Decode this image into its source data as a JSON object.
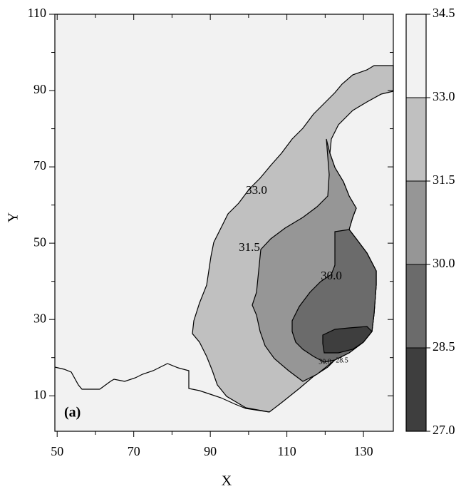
{
  "chart_data": {
    "type": "contour",
    "panel_label": "(a)",
    "xlabel": "X",
    "ylabel": "Y",
    "xlim": [
      49.4,
      137.8
    ],
    "xticks": [
      50,
      70,
      90,
      110,
      130
    ],
    "ylim": [
      0.7,
      110
    ],
    "yticks": [
      10,
      30,
      50,
      70,
      90,
      110
    ],
    "colorbar": {
      "lim": [
        27,
        34.5
      ],
      "ticks": [
        {
          "value": 27,
          "label": "27.0"
        },
        {
          "value": 28.5,
          "label": "28.5"
        },
        {
          "value": 30,
          "label": "30.0"
        },
        {
          "value": 31.5,
          "label": "31.5"
        },
        {
          "value": 33,
          "label": "33.0"
        },
        {
          "value": 34.5,
          "label": "34.5"
        }
      ],
      "colors": [
        "#3e3e3e",
        "#6b6b6b",
        "#969696",
        "#c0c0c0",
        "#f2f2f2"
      ]
    },
    "contour_labels": [
      "33.0",
      "31.5",
      "30.0",
      "30.0",
      "28.5"
    ]
  }
}
